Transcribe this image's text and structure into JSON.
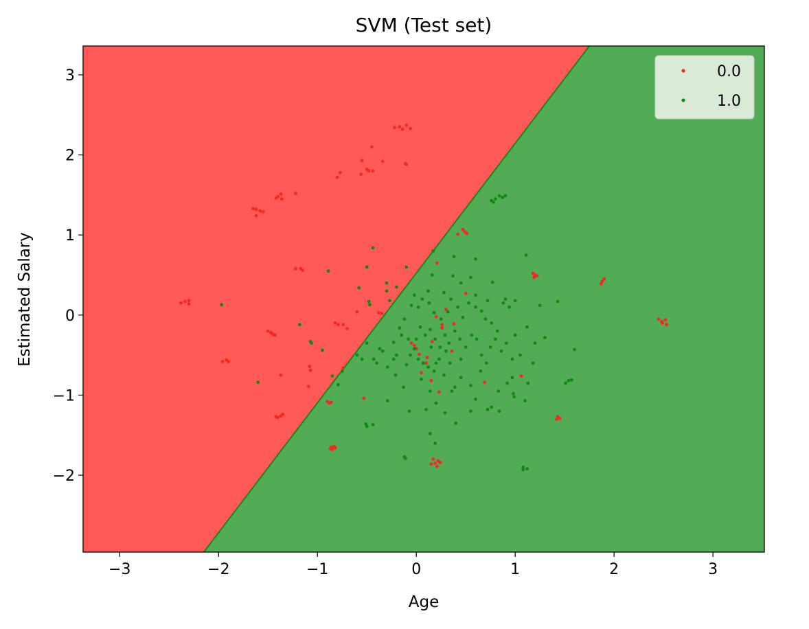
{
  "chart_data": {
    "type": "scatter",
    "title": "SVM (Test set)",
    "xlabel": "Age",
    "ylabel": "Estimated Salary",
    "xlim": [
      -3.37,
      3.52
    ],
    "ylim": [
      -2.96,
      3.36
    ],
    "xticks": [
      -3,
      -2,
      -1,
      0,
      1,
      2,
      3
    ],
    "yticks": [
      -2,
      -1,
      0,
      1,
      2,
      3
    ],
    "xtick_labels": [
      "−3",
      "−2",
      "−1",
      "0",
      "1",
      "2",
      "3"
    ],
    "ytick_labels": [
      "−2",
      "−1",
      "0",
      "1",
      "2",
      "3"
    ],
    "grid": false,
    "legend_position": "top-right",
    "decision_regions": {
      "boundary_line": [
        [
          -2.15,
          -2.96
        ],
        [
          1.75,
          3.36
        ]
      ],
      "region_colors": {
        "0.0": "#ff5a57",
        "1.0": "#52ab55"
      },
      "boundary_color": "#138a13"
    },
    "series": [
      {
        "name": "0.0",
        "color": "#f5281e",
        "points": [
          [
            -0.17,
            2.35
          ],
          [
            -0.14,
            2.32
          ],
          [
            -0.1,
            2.37
          ],
          [
            -0.06,
            2.33
          ],
          [
            -0.22,
            2.34
          ],
          [
            -0.45,
            2.1
          ],
          [
            -0.55,
            1.93
          ],
          [
            -0.34,
            1.92
          ],
          [
            -0.11,
            1.89
          ],
          [
            -0.1,
            1.88
          ],
          [
            -0.5,
            1.82
          ],
          [
            -0.48,
            1.8
          ],
          [
            -0.44,
            1.8
          ],
          [
            -0.56,
            1.76
          ],
          [
            -0.77,
            1.78
          ],
          [
            -0.8,
            1.72
          ],
          [
            -1.37,
            1.51
          ],
          [
            -1.4,
            1.48
          ],
          [
            -1.42,
            1.46
          ],
          [
            -1.36,
            1.45
          ],
          [
            -1.22,
            1.52
          ],
          [
            -1.65,
            1.33
          ],
          [
            -1.62,
            1.32
          ],
          [
            -1.58,
            1.3
          ],
          [
            -1.55,
            1.29
          ],
          [
            -1.62,
            1.24
          ],
          [
            -1.22,
            0.58
          ],
          [
            -1.17,
            0.58
          ],
          [
            -1.15,
            0.56
          ],
          [
            -2.38,
            0.15
          ],
          [
            -2.34,
            0.17
          ],
          [
            -2.3,
            0.18
          ],
          [
            -2.3,
            0.14
          ],
          [
            -1.5,
            -0.2
          ],
          [
            -1.47,
            -0.22
          ],
          [
            -1.45,
            -0.24
          ],
          [
            -1.43,
            -0.25
          ],
          [
            -1.96,
            -0.58
          ],
          [
            -1.92,
            -0.56
          ],
          [
            -1.9,
            -0.58
          ],
          [
            -1.37,
            -0.75
          ],
          [
            -1.08,
            -0.64
          ],
          [
            -1.07,
            -0.69
          ],
          [
            -1.09,
            -0.89
          ],
          [
            -0.82,
            -0.1
          ],
          [
            -0.79,
            -0.12
          ],
          [
            -0.74,
            -0.12
          ],
          [
            -0.6,
            0.04
          ],
          [
            -0.7,
            -0.17
          ],
          [
            -0.38,
            0.03
          ],
          [
            -0.35,
            0.02
          ],
          [
            -0.74,
            -0.66
          ],
          [
            -1.42,
            -1.27
          ],
          [
            -1.4,
            -1.28
          ],
          [
            -1.37,
            -1.26
          ],
          [
            -1.35,
            -1.24
          ],
          [
            -0.9,
            -1.08
          ],
          [
            -0.88,
            -1.1
          ],
          [
            -0.86,
            -1.09
          ],
          [
            -0.87,
            -1.67
          ],
          [
            -0.85,
            -1.65
          ],
          [
            -0.83,
            -1.64
          ],
          [
            -0.85,
            -1.68
          ],
          [
            -0.82,
            -1.66
          ],
          [
            -0.86,
            -1.65
          ],
          [
            0.17,
            -1.8
          ],
          [
            0.19,
            -1.85
          ],
          [
            0.22,
            -1.82
          ],
          [
            0.15,
            -1.86
          ],
          [
            0.21,
            -1.89
          ],
          [
            0.24,
            -1.84
          ],
          [
            0.47,
            1.07
          ],
          [
            0.49,
            1.04
          ],
          [
            0.51,
            1.02
          ],
          [
            0.42,
            1.01
          ],
          [
            1.18,
            0.52
          ],
          [
            1.2,
            0.5
          ],
          [
            1.22,
            0.49
          ],
          [
            1.19,
            0.47
          ],
          [
            1.9,
            0.45
          ],
          [
            1.88,
            0.42
          ],
          [
            1.87,
            0.39
          ],
          [
            2.45,
            -0.05
          ],
          [
            2.48,
            -0.08
          ],
          [
            2.52,
            -0.06
          ],
          [
            2.53,
            -0.12
          ],
          [
            2.49,
            -0.1
          ],
          [
            1.43,
            -1.27
          ],
          [
            1.45,
            -1.29
          ],
          [
            1.42,
            -1.3
          ],
          [
            -0.53,
            -1.04
          ],
          [
            0.21,
            0.65
          ],
          [
            -0.05,
            -0.35
          ],
          [
            0.0,
            -0.42
          ],
          [
            0.03,
            -0.49
          ],
          [
            0.11,
            -0.53
          ],
          [
            0.16,
            -0.33
          ],
          [
            0.26,
            -0.16
          ],
          [
            0.38,
            -0.11
          ],
          [
            0.5,
            0.27
          ],
          [
            0.3,
            0.07
          ],
          [
            0.15,
            -0.82
          ],
          [
            0.23,
            -0.96
          ],
          [
            0.69,
            -0.84
          ],
          [
            1.06,
            -0.76
          ],
          [
            0.05,
            -0.72
          ],
          [
            0.2,
            -0.02
          ],
          [
            0.36,
            -0.45
          ],
          [
            -0.02,
            -0.38
          ],
          [
            0.1,
            -0.6
          ],
          [
            0.26,
            -0.12
          ]
        ]
      },
      {
        "name": "1.0",
        "color": "#0f8a0f",
        "points": [
          [
            0.78,
            1.41
          ],
          [
            0.8,
            1.45
          ],
          [
            0.84,
            1.49
          ],
          [
            0.87,
            1.47
          ],
          [
            0.9,
            1.49
          ],
          [
            0.76,
            1.43
          ],
          [
            -0.89,
            0.55
          ],
          [
            -0.5,
            0.6
          ],
          [
            -0.44,
            0.84
          ],
          [
            -0.3,
            0.4
          ],
          [
            -0.1,
            0.6
          ],
          [
            -1.97,
            0.13
          ],
          [
            -1.18,
            -0.12
          ],
          [
            -1.06,
            -0.35
          ],
          [
            -1.07,
            -0.33
          ],
          [
            -0.95,
            -0.44
          ],
          [
            -1.6,
            -0.84
          ],
          [
            -0.85,
            -0.76
          ],
          [
            -0.79,
            -0.87
          ],
          [
            -0.75,
            -0.7
          ],
          [
            -0.51,
            -1.36
          ],
          [
            -0.5,
            -1.39
          ],
          [
            -0.44,
            -1.37
          ],
          [
            -0.29,
            -1.07
          ],
          [
            -0.12,
            -1.77
          ],
          [
            -0.11,
            -1.79
          ],
          [
            0.14,
            -1.48
          ],
          [
            0.19,
            -1.6
          ],
          [
            1.08,
            -1.9
          ],
          [
            1.08,
            -1.93
          ],
          [
            1.12,
            -1.92
          ],
          [
            1.51,
            -0.85
          ],
          [
            1.54,
            -0.82
          ],
          [
            1.57,
            -0.81
          ],
          [
            1.6,
            -0.43
          ],
          [
            1.43,
            0.17
          ],
          [
            1.11,
            0.75
          ],
          [
            0.77,
            0.41
          ],
          [
            0.6,
            0.7
          ],
          [
            0.55,
            0.47
          ],
          [
            0.37,
            0.49
          ],
          [
            0.38,
            0.73
          ],
          [
            0.17,
            0.8
          ],
          [
            0.16,
            0.5
          ],
          [
            -0.58,
            0.34
          ],
          [
            -0.48,
            0.17
          ],
          [
            -0.47,
            0.13
          ],
          [
            -0.3,
            0.3
          ],
          [
            -0.2,
            0.35
          ],
          [
            -0.5,
            -0.35
          ],
          [
            -0.43,
            -0.55
          ],
          [
            -0.37,
            -0.42
          ],
          [
            -0.23,
            -0.34
          ],
          [
            -0.17,
            -0.16
          ],
          [
            -0.12,
            -0.05
          ],
          [
            -0.05,
            0.12
          ],
          [
            0.02,
            0.1
          ],
          [
            0.06,
            0.2
          ],
          [
            0.13,
            0.15
          ],
          [
            0.18,
            0.03
          ],
          [
            0.25,
            -0.05
          ],
          [
            0.32,
            0.04
          ],
          [
            0.42,
            0.1
          ],
          [
            0.47,
            -0.03
          ],
          [
            0.53,
            0.15
          ],
          [
            0.6,
            0.1
          ],
          [
            0.66,
            0.05
          ],
          [
            0.7,
            -0.05
          ],
          [
            0.76,
            -0.1
          ],
          [
            0.82,
            -0.2
          ],
          [
            0.88,
            0.15
          ],
          [
            0.94,
            0.1
          ],
          [
            1.0,
            -0.25
          ],
          [
            1.05,
            -0.5
          ],
          [
            1.12,
            -0.15
          ],
          [
            1.2,
            -0.35
          ],
          [
            1.3,
            -0.28
          ],
          [
            1.25,
            0.12
          ],
          [
            1.18,
            -0.6
          ],
          [
            1.13,
            -0.85
          ],
          [
            0.97,
            -0.78
          ],
          [
            0.92,
            -0.85
          ],
          [
            0.83,
            -0.95
          ],
          [
            0.76,
            -1.15
          ],
          [
            0.72,
            -1.18
          ],
          [
            0.6,
            -1.05
          ],
          [
            0.55,
            -0.88
          ],
          [
            0.45,
            -0.78
          ],
          [
            0.36,
            -0.95
          ],
          [
            0.29,
            -1.22
          ],
          [
            0.2,
            -1.1
          ],
          [
            0.1,
            -1.18
          ],
          [
            -0.07,
            -1.2
          ],
          [
            -0.13,
            -0.9
          ],
          [
            -0.21,
            -0.75
          ],
          [
            -0.23,
            -0.55
          ],
          [
            -0.29,
            -0.65
          ],
          [
            -0.34,
            -0.45
          ],
          [
            -0.4,
            -0.6
          ],
          [
            -0.55,
            -0.55
          ],
          [
            -0.6,
            -0.5
          ],
          [
            -0.15,
            -0.25
          ],
          [
            -0.08,
            -0.3
          ],
          [
            0.04,
            -0.15
          ],
          [
            0.09,
            -0.25
          ],
          [
            0.14,
            -0.18
          ],
          [
            0.19,
            -0.3
          ],
          [
            0.24,
            -0.4
          ],
          [
            0.29,
            -0.25
          ],
          [
            0.33,
            -0.35
          ],
          [
            0.39,
            -0.2
          ],
          [
            0.44,
            -0.3
          ],
          [
            0.5,
            -0.4
          ],
          [
            0.56,
            -0.25
          ],
          [
            0.61,
            -0.3
          ],
          [
            0.66,
            -0.5
          ],
          [
            0.71,
            -0.6
          ],
          [
            0.75,
            -0.4
          ],
          [
            0.8,
            -0.3
          ],
          [
            0.86,
            -0.45
          ],
          [
            0.91,
            -0.35
          ],
          [
            0.97,
            -0.55
          ],
          [
            0.02,
            -0.55
          ],
          [
            0.07,
            -0.6
          ],
          [
            0.12,
            -0.65
          ],
          [
            0.18,
            -0.7
          ],
          [
            0.23,
            -0.55
          ],
          [
            0.28,
            -0.75
          ],
          [
            0.34,
            -0.6
          ],
          [
            -0.02,
            -0.42
          ],
          [
            -0.06,
            -0.5
          ],
          [
            -0.1,
            -0.62
          ],
          [
            0.05,
            -0.8
          ],
          [
            0.14,
            -0.95
          ],
          [
            0.4,
            -1.35
          ],
          [
            0.55,
            -1.2
          ],
          [
            0.65,
            -0.7
          ],
          [
            0.45,
            -0.55
          ],
          [
            0.28,
            0.28
          ],
          [
            0.45,
            0.4
          ],
          [
            0.6,
            0.25
          ],
          [
            0.72,
            0.18
          ],
          [
            0.9,
            0.2
          ],
          [
            1.0,
            0.18
          ],
          [
            0.35,
            0.2
          ],
          [
            0.12,
            0.3
          ],
          [
            -0.02,
            0.25
          ],
          [
            0.2,
            -0.6
          ],
          [
            0.3,
            -0.45
          ],
          [
            0.15,
            -0.4
          ],
          [
            0.0,
            -0.3
          ],
          [
            0.98,
            -0.98
          ],
          [
            0.99,
            -1.02
          ],
          [
            1.1,
            -1.07
          ],
          [
            0.84,
            -1.2
          ],
          [
            -0.27,
            0.18
          ],
          [
            -0.2,
            -0.5
          ],
          [
            0.39,
            -0.9
          ]
        ]
      }
    ]
  }
}
